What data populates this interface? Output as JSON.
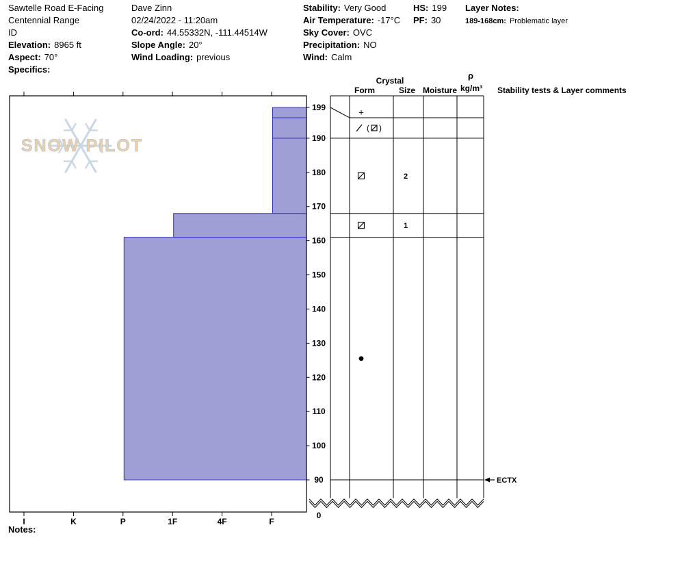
{
  "header": {
    "location": {
      "line1": "Sawtelle Road E-Facing",
      "line2": "Centennial Range",
      "line3": "ID",
      "elevation_label": "Elevation:",
      "elevation_value": "8965 ft",
      "aspect_label": "Aspect:",
      "aspect_value": "70°",
      "specifics_label": "Specifics:",
      "specifics_value": ""
    },
    "observer": {
      "name": "Dave Zinn",
      "datetime": "02/24/2022 - 11:20am",
      "coord_label": "Co-ord:",
      "coord_value": "44.55332N, -111.44514W",
      "slope_angle_label": "Slope Angle:",
      "slope_angle_value": "20°",
      "wind_loading_label": "Wind Loading:",
      "wind_loading_value": "previous"
    },
    "conditions": {
      "stability_label": "Stability:",
      "stability_value": "Very Good",
      "air_temp_label": "Air Temperature:",
      "air_temp_value": "-17°C",
      "sky_cover_label": "Sky Cover:",
      "sky_cover_value": "OVC",
      "precip_label": "Precipitation:",
      "precip_value": "NO",
      "wind_label": "Wind:",
      "wind_value": "Calm"
    },
    "snowpack": {
      "hs_label": "HS:",
      "hs_value": "199",
      "pf_label": "PF:",
      "pf_value": "30"
    },
    "layer_notes": {
      "title": "Layer Notes:",
      "entries": [
        {
          "range": "189-168cm:",
          "text": "Problematic layer"
        }
      ]
    }
  },
  "watermark": {
    "text": "SNOW PILOT"
  },
  "notes_label": "Notes:",
  "chart_data": {
    "type": "bar",
    "subtype": "snow-profile-hardness",
    "depth_unit": "cm",
    "total_height_cm": 199,
    "pit_bottom_cm": 90,
    "y_ticks": [
      199,
      190,
      180,
      170,
      160,
      150,
      140,
      130,
      120,
      110,
      100,
      90
    ],
    "y_bottom_tick": "0",
    "hardness_categories": [
      "I",
      "K",
      "P",
      "1F",
      "4F",
      "F"
    ],
    "column_headers": {
      "crystal": "Crystal",
      "form": "Form",
      "size": "Size",
      "moisture": "Moisture",
      "rho": "ρ",
      "rho_unit": "kg/m³",
      "stability": "Stability tests & Layer comments"
    },
    "layers": [
      {
        "top_cm": 199,
        "bottom_cm": 196,
        "hardness": "F",
        "grain_form": "precipitation-particles",
        "grain_symbol": "+",
        "size_mm": "",
        "moisture": "",
        "density": ""
      },
      {
        "top_cm": 196,
        "bottom_cm": 190,
        "hardness": "F",
        "grain_form": "decomposing-fragments",
        "grain_symbol": "/ (□)",
        "size_mm": "",
        "moisture": "",
        "density": ""
      },
      {
        "top_cm": 190,
        "bottom_cm": 168,
        "hardness": "F",
        "grain_form": "facets",
        "grain_symbol": "□",
        "size_mm": "2",
        "moisture": "",
        "density": ""
      },
      {
        "top_cm": 168,
        "bottom_cm": 161,
        "hardness": "1F",
        "grain_form": "facets",
        "grain_symbol": "□",
        "size_mm": "1",
        "moisture": "",
        "density": ""
      },
      {
        "top_cm": 161,
        "bottom_cm": 90,
        "hardness": "P",
        "grain_form": "rounds",
        "grain_symbol": "●",
        "size_mm": "",
        "moisture": "",
        "density": ""
      }
    ],
    "stability_tests": [
      {
        "depth_cm": 90,
        "result": "ECTX"
      }
    ],
    "colors": {
      "layer_fill": "#9f9fd6",
      "layer_stroke": "#3030c8",
      "frame": "#000000",
      "watermark_snowflake": "#c9d7e4",
      "watermark_text_fill": "#ecd0a6",
      "watermark_text_stroke": "#b7c4d2"
    }
  }
}
